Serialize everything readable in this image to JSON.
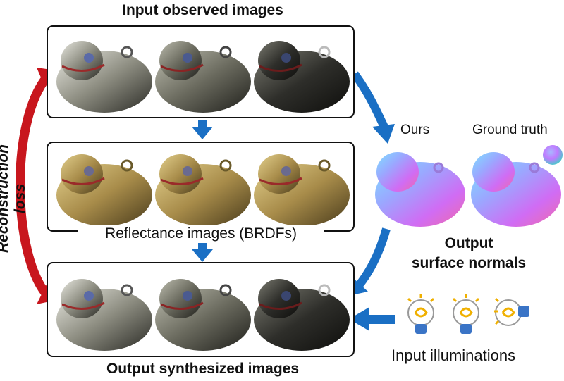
{
  "titles": {
    "input_observed": "Input observed images",
    "reflectance": "Reflectance images (BRDFs)",
    "output_synth": "Output synthesized images",
    "output_normals_line1": "Output",
    "output_normals_line2": "surface normals",
    "input_illum": "Input illuminations",
    "recon_loss": "Reconstruction loss",
    "ours": "Ours",
    "ground_truth": "Ground truth"
  },
  "colors": {
    "red_arrow": "#c8161d",
    "blue_arrow": "#1a6fc4",
    "panel_border": "#111111"
  },
  "rows": {
    "observed_tones": [
      "bright-silver",
      "medium-silver",
      "dark-silver"
    ],
    "reflectance_tones": [
      "gold",
      "gold",
      "gold"
    ],
    "synthesized_tones": [
      "bright-silver",
      "medium-silver",
      "dark-silver"
    ]
  },
  "icons": {
    "bulbs": [
      "lightbulb-icon",
      "lightbulb-icon",
      "lightbulb-icon"
    ],
    "sphere": "normal-sphere-icon"
  }
}
